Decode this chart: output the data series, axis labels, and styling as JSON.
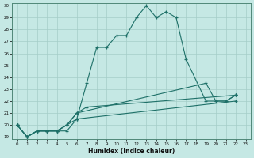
{
  "xlabel": "Humidex (Indice chaleur)",
  "bg_color": "#c5e8e4",
  "grid_color": "#a5cdc8",
  "line_color": "#1e7068",
  "xlim": [
    0,
    23
  ],
  "ylim": [
    19,
    30
  ],
  "xticks": [
    0,
    1,
    2,
    3,
    4,
    5,
    6,
    7,
    8,
    9,
    10,
    11,
    12,
    13,
    14,
    15,
    16,
    17,
    18,
    19,
    20,
    21,
    22,
    23
  ],
  "yticks": [
    19,
    20,
    21,
    22,
    23,
    24,
    25,
    26,
    27,
    28,
    29,
    30
  ],
  "series": [
    {
      "x": [
        0,
        1,
        2,
        3,
        4,
        5,
        6,
        7,
        8,
        9,
        10,
        11,
        12,
        13,
        14,
        15,
        16,
        17,
        19,
        20,
        21,
        22
      ],
      "y": [
        20,
        19,
        19.5,
        19.5,
        19.5,
        19.5,
        20.5,
        23.5,
        26.5,
        26.5,
        27.5,
        27.5,
        29,
        30,
        29,
        29.5,
        29,
        25.5,
        22,
        22,
        22,
        22.5
      ]
    },
    {
      "x": [
        0,
        1,
        2,
        3,
        4,
        5,
        6,
        7,
        22
      ],
      "y": [
        20,
        19,
        19.5,
        19.5,
        19.5,
        20,
        21,
        21.5,
        22.5
      ]
    },
    {
      "x": [
        0,
        1,
        2,
        3,
        4,
        5,
        6,
        22
      ],
      "y": [
        20,
        19,
        19.5,
        19.5,
        19.5,
        20,
        20.5,
        22
      ]
    },
    {
      "x": [
        0,
        1,
        2,
        3,
        4,
        5,
        6,
        19,
        20,
        21,
        22
      ],
      "y": [
        20,
        19,
        19.5,
        19.5,
        19.5,
        20,
        21,
        23.5,
        22,
        22,
        22.5
      ]
    }
  ]
}
